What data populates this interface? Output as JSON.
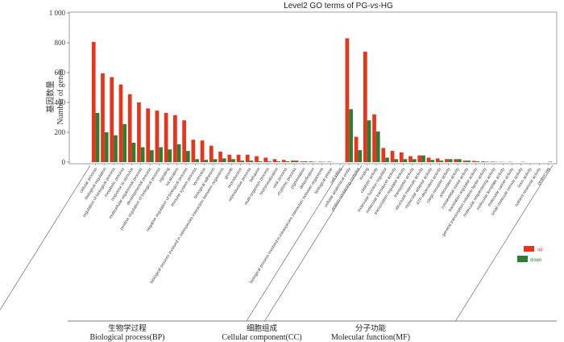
{
  "chart_data": {
    "type": "bar",
    "title": "Level2 GO terms of PG-vs-HG",
    "title_parts": {
      "prefix": "Level2 GO terms of PG-",
      "italic": "vs",
      "suffix": "-HG"
    },
    "ylabel_zh": "基因数量",
    "ylabel": "Number of genes",
    "ylim": [
      0,
      1000
    ],
    "yticks": [
      0,
      200,
      400,
      600,
      800,
      1000
    ],
    "ytick_labels": [
      "0",
      "200",
      "400",
      "600",
      "800",
      "1 000"
    ],
    "legend": {
      "position": "bottom-right",
      "entries": [
        {
          "name": "up",
          "color": "#e8341c"
        },
        {
          "name": "down",
          "color": "#2e7d32"
        }
      ]
    },
    "colors": {
      "up": "#e8341c",
      "down": "#2e7d32",
      "up_text": "#e8341c",
      "down_text": "#2e7d32"
    },
    "groups": [
      {
        "zh": "生物学过程",
        "en": "Biological process(BP)",
        "start": 0,
        "end": 27
      },
      {
        "zh": "细胞组成",
        "en": "Cellular component(CC)",
        "start": 28,
        "end": 29
      },
      {
        "zh": "分子功能",
        "en": "Molecular function(MF)",
        "start": 30,
        "end": 50
      }
    ],
    "categories": [
      "cellular process",
      "biological regulation",
      "regulation of biological process",
      "metabolic process",
      "response to stimulus",
      "multicellular organismal process",
      "developmental process",
      "positive regulation of biological process",
      "signaling",
      "localization",
      "negative regulation of biological process",
      "immune system process",
      "locomotion",
      "biological adhesion",
      "biological process involved in interspecies interaction between organisms",
      "growth",
      "reproduction",
      "reproductive process",
      "behavior",
      "multi-organism process",
      "biomineralization",
      "viral process",
      "rhythmic process",
      "pigmentation",
      "detoxification",
      "biological process involved in intraspecies interaction between organisms",
      "biological phase",
      "cell killing",
      "cellular anatomical entity",
      "protein-containing complex",
      "binding",
      "catalytic activity",
      "molecular function regulator",
      "molecular transducer activity",
      "transcription regulator activity",
      "transporter activity",
      "structural molecule activity",
      "molecular adaptor activity",
      "ATP-dependent activity",
      "cargo receptor activity",
      "antioxidant activity",
      "cytoskeletal motor activity",
      "translation regulator activity",
      "general transcription initiation factor activity",
      "molecular sequestering activity",
      "molecular template activity",
      "molecular carrier activity",
      "small molecule sensor activity",
      "toxin activity",
      "nutrient reservoir activity",
      "protein tag"
    ],
    "series": [
      {
        "name": "up",
        "values": [
          805,
          595,
          570,
          520,
          455,
          400,
          360,
          345,
          330,
          315,
          280,
          150,
          145,
          110,
          70,
          50,
          50,
          50,
          40,
          30,
          20,
          15,
          10,
          5,
          5,
          3,
          3,
          0,
          830,
          170,
          740,
          320,
          95,
          75,
          65,
          40,
          45,
          30,
          25,
          20,
          20,
          10,
          8,
          5,
          3,
          2,
          2,
          0,
          0,
          0,
          0
        ]
      },
      {
        "name": "down",
        "values": [
          330,
          200,
          180,
          255,
          130,
          100,
          80,
          100,
          85,
          120,
          75,
          20,
          15,
          20,
          25,
          20,
          10,
          10,
          5,
          5,
          5,
          5,
          10,
          5,
          2,
          2,
          1,
          0,
          355,
          80,
          280,
          205,
          30,
          20,
          20,
          20,
          45,
          15,
          10,
          20,
          20,
          10,
          5,
          3,
          2,
          1,
          0,
          2,
          0,
          0,
          3
        ]
      }
    ]
  }
}
